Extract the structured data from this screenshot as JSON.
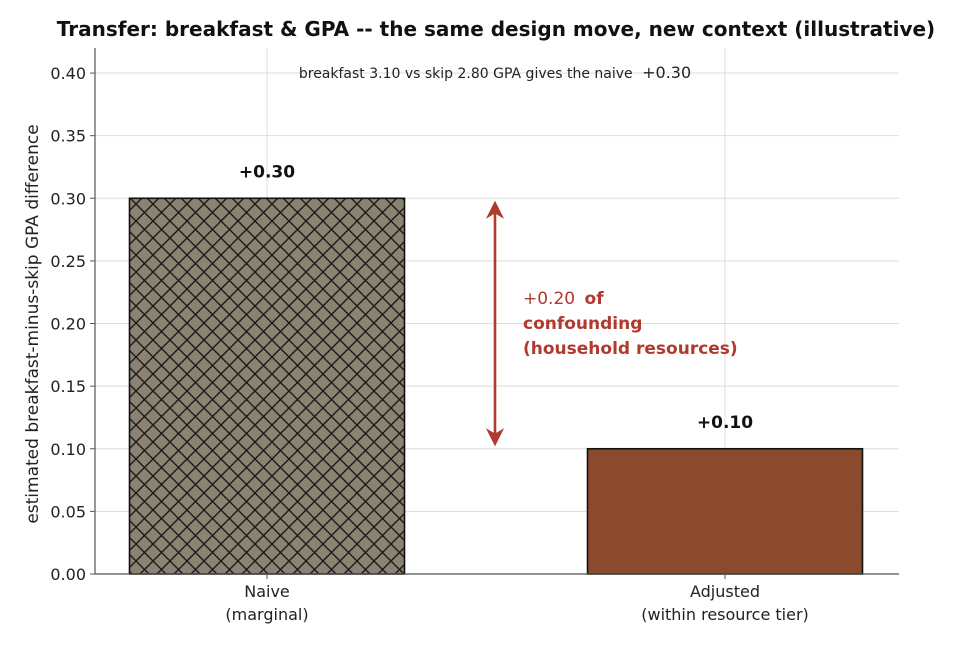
{
  "chart_data": {
    "type": "bar",
    "title": "Transfer: breakfast & GPA -- the same design move, new context (illustrative)",
    "ylabel": "estimated breakfast-minus-skip GPA difference",
    "xlabel": "",
    "ylim": [
      0,
      0.42
    ],
    "yticks": [
      0.0,
      0.05,
      0.1,
      0.15,
      0.2,
      0.25,
      0.3,
      0.35,
      0.4
    ],
    "ytick_labels": [
      "0.00",
      "0.05",
      "0.10",
      "0.15",
      "0.20",
      "0.25",
      "0.30",
      "0.35",
      "0.40"
    ],
    "grid": true,
    "categories": [
      {
        "line1": "Naive",
        "line2": "(marginal)"
      },
      {
        "line1": "Adjusted",
        "line2": "(within resource tier)"
      }
    ],
    "values": [
      0.3,
      0.1
    ],
    "bar_labels": [
      "+0.30",
      "+0.10"
    ],
    "bar_colors": [
      "#8b8272",
      "#8b4a2e"
    ],
    "bar_hatch": [
      "crosshatch",
      "none"
    ],
    "top_note": {
      "text": "breakfast 3.10 vs skip 2.80 GPA gives the naive",
      "value": "+0.30"
    },
    "confounding_annotation": {
      "from": 0.3,
      "to": 0.1,
      "color": "#b03a2e",
      "value_text": "+0.20",
      "line1_rest": "of",
      "line2": "confounding",
      "line3": "(household resources)"
    }
  }
}
